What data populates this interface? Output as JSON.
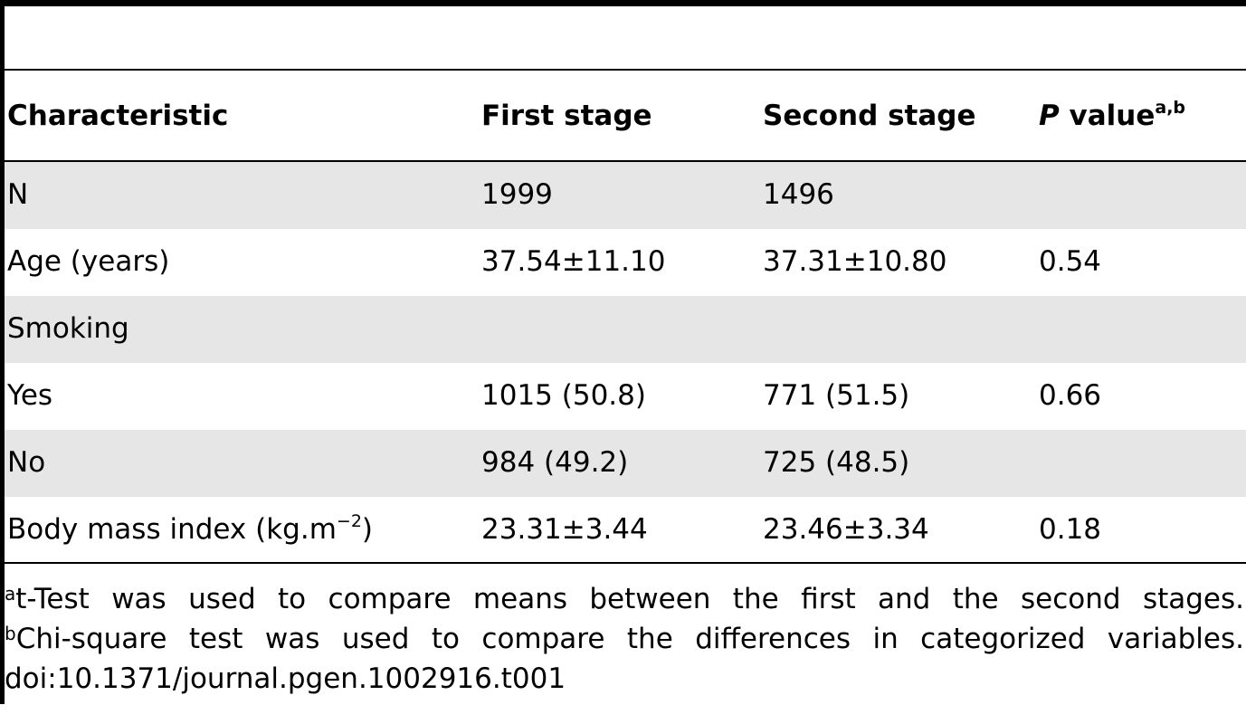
{
  "table": {
    "headers": {
      "characteristic": "Characteristic",
      "first_stage": "First stage",
      "second_stage": "Second stage",
      "p_value_italic": "P",
      "p_value_text": " value",
      "p_value_sup": "a,b"
    },
    "rows": [
      {
        "label": "N",
        "first": "1999",
        "second": "1496",
        "p": ""
      },
      {
        "label": "Age (years)",
        "first": "37.54±11.10",
        "second": "37.31±10.80",
        "p": "0.54"
      },
      {
        "label": "Smoking",
        "first": "",
        "second": "",
        "p": ""
      },
      {
        "label": "Yes",
        "first": "1015 (50.8)",
        "second": "771 (51.5)",
        "p": "0.66"
      },
      {
        "label": "No",
        "first": "984 (49.2)",
        "second": "725 (48.5)",
        "p": ""
      },
      {
        "label_main": "Body mass index (kg.m",
        "label_sup": "−2",
        "label_end": ")",
        "first": "23.31±3.44",
        "second": "23.46±3.34",
        "p": "0.18"
      }
    ]
  },
  "footnotes": {
    "a_marker": "a",
    "a_text": "t-Test was used to compare means between the first and the second stages.",
    "b_marker": "b",
    "b_text": "Chi-square test was used to compare the differences in categorized variables.",
    "doi": "doi:10.1371/journal.pgen.1002916.t001"
  }
}
